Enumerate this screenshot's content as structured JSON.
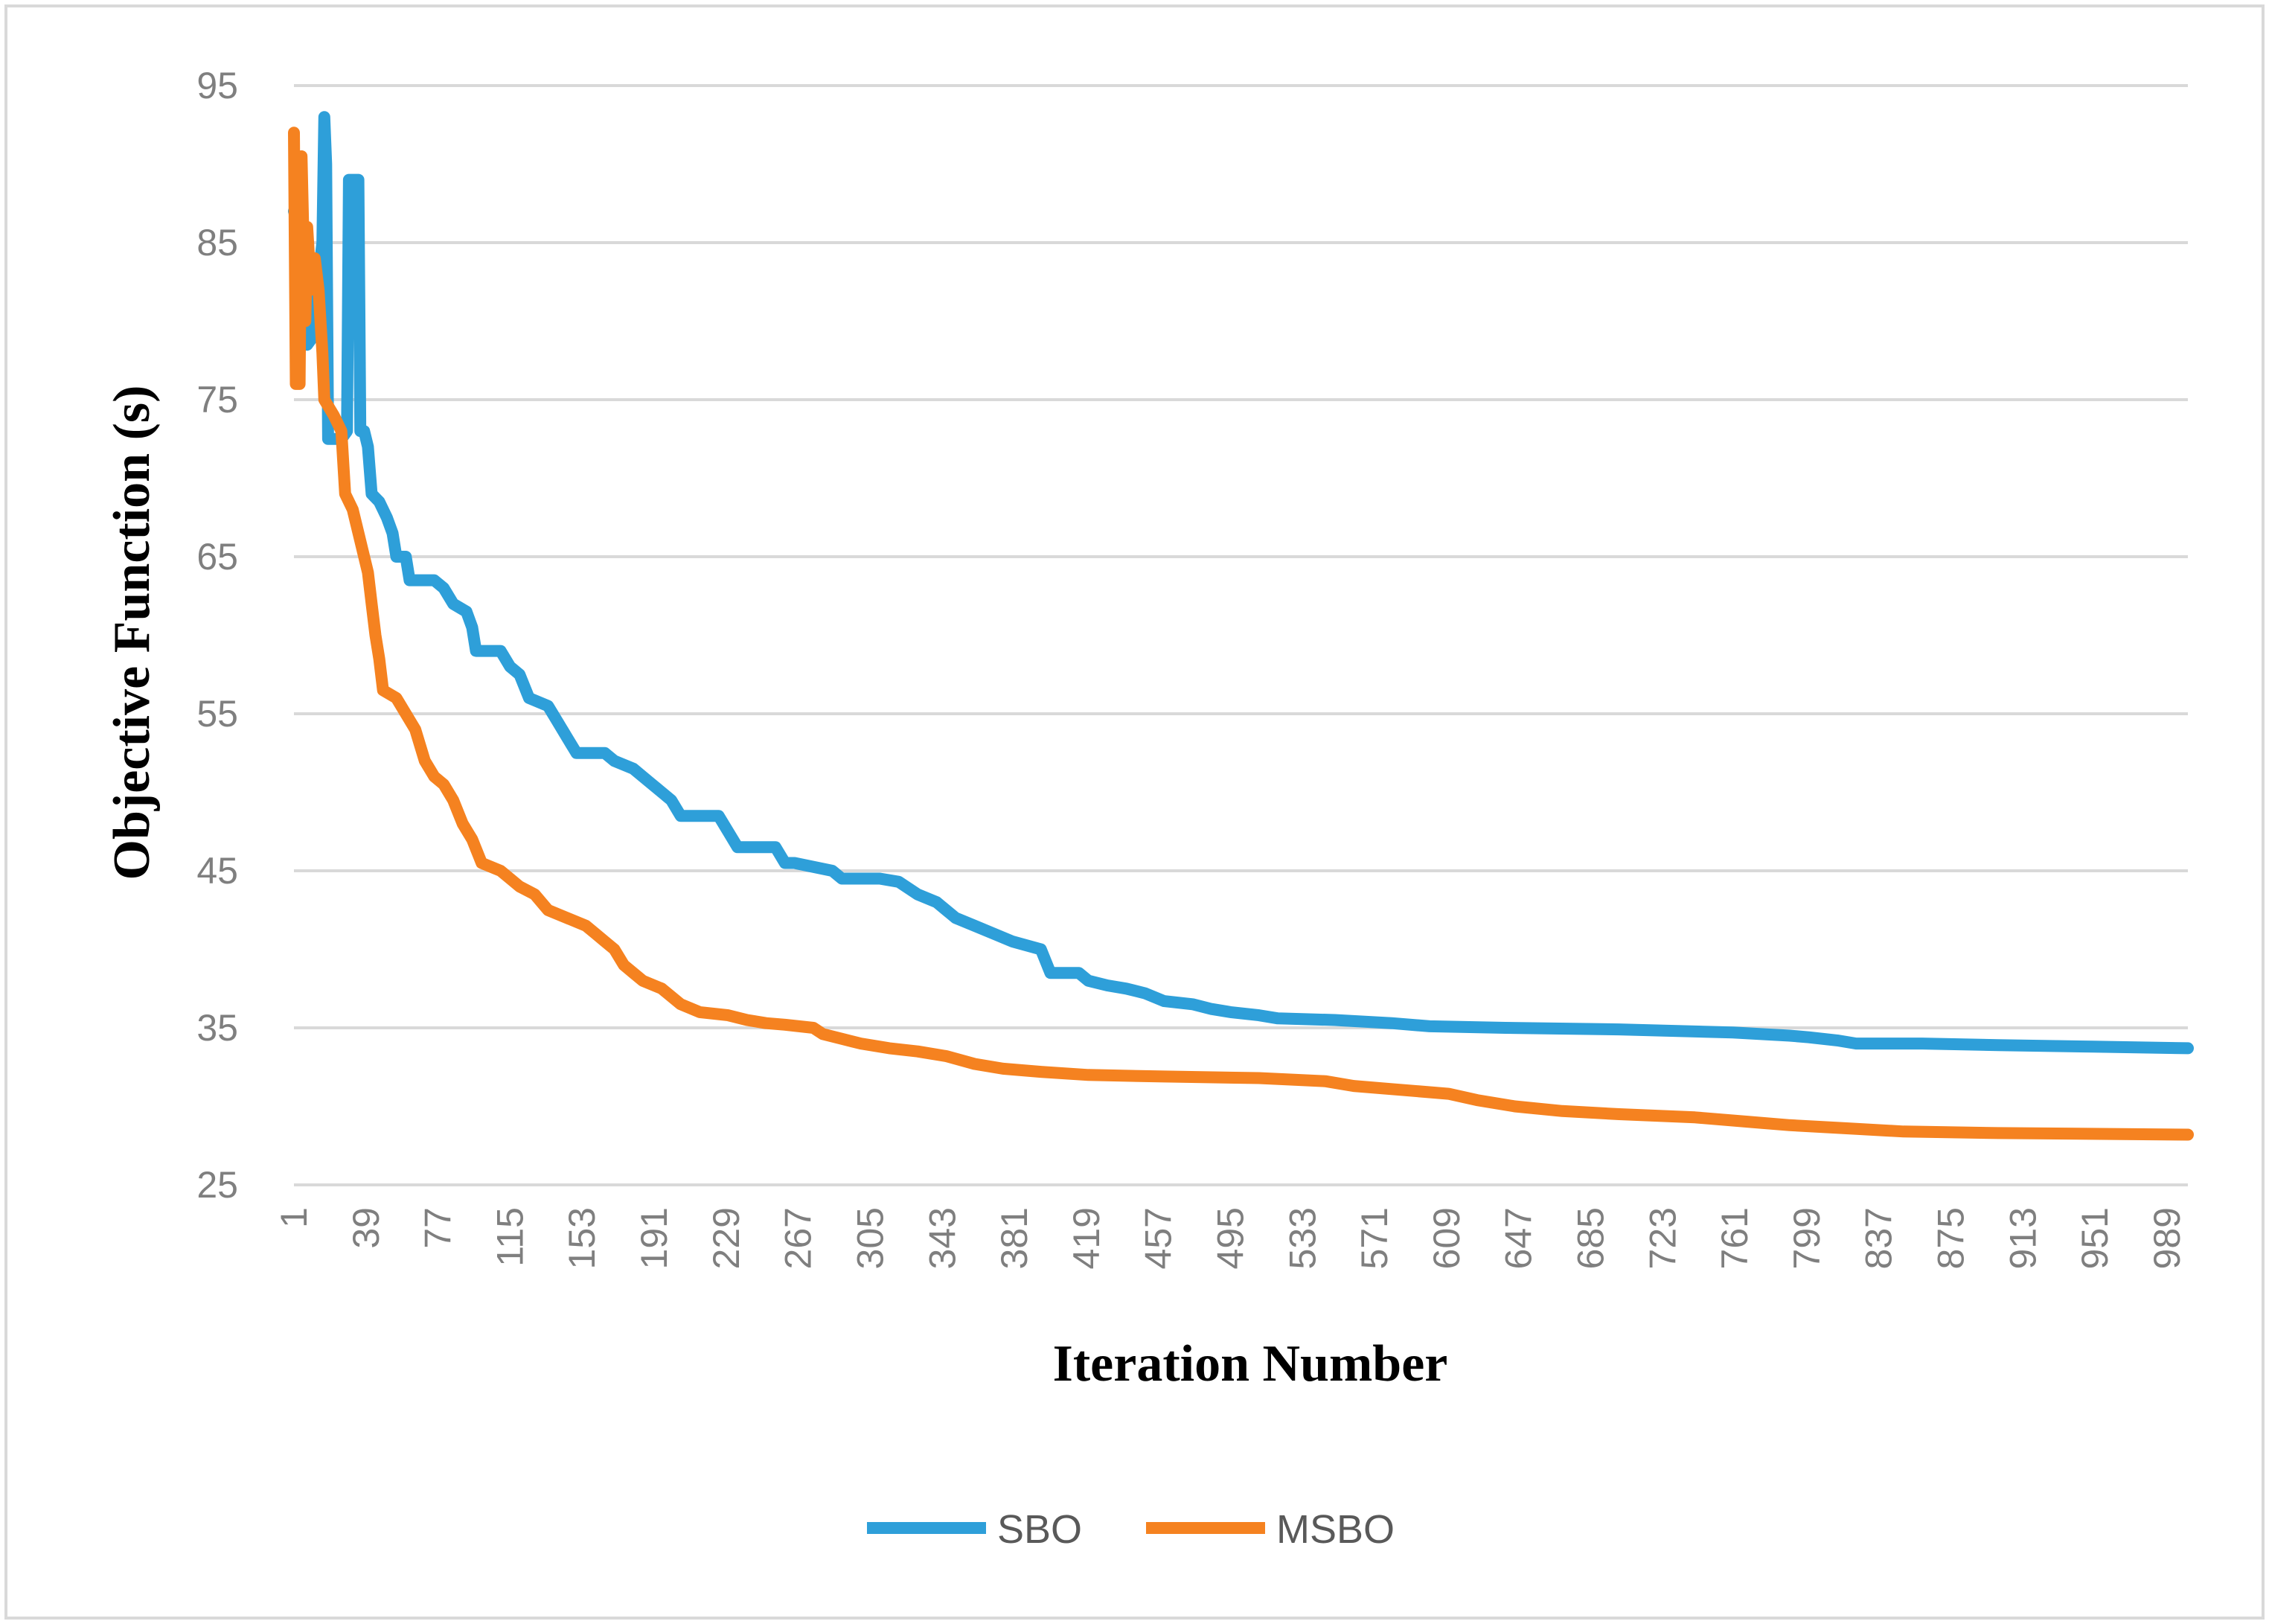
{
  "chart_data": {
    "type": "line",
    "title": "",
    "xlabel": "Iteration Number",
    "ylabel": "Objective Function (s)",
    "ylim": [
      25,
      95
    ],
    "xlim": [
      1,
      1000
    ],
    "yticks": [
      25,
      35,
      45,
      55,
      65,
      75,
      85,
      95
    ],
    "xticks": [
      1,
      39,
      77,
      115,
      153,
      191,
      229,
      267,
      305,
      343,
      381,
      419,
      457,
      495,
      533,
      571,
      609,
      647,
      685,
      723,
      761,
      799,
      837,
      875,
      913,
      951,
      989
    ],
    "grid": true,
    "legend_position": "bottom",
    "series": [
      {
        "name": "SBO",
        "color": "#2e9fd9",
        "points": [
          [
            1,
            87
          ],
          [
            4,
            86
          ],
          [
            6,
            80
          ],
          [
            8,
            78.5
          ],
          [
            11,
            79
          ],
          [
            13,
            82
          ],
          [
            15,
            84
          ],
          [
            16,
            85
          ],
          [
            17,
            93
          ],
          [
            18,
            90
          ],
          [
            19,
            72.5
          ],
          [
            22,
            72.5
          ],
          [
            26,
            72.5
          ],
          [
            29,
            73
          ],
          [
            30,
            89
          ],
          [
            35,
            89
          ],
          [
            36,
            73
          ],
          [
            38,
            73
          ],
          [
            40,
            72
          ],
          [
            42,
            69
          ],
          [
            46,
            68.5
          ],
          [
            50,
            67.5
          ],
          [
            53,
            66.5
          ],
          [
            55,
            65
          ],
          [
            60,
            65
          ],
          [
            62,
            63.5
          ],
          [
            70,
            63.5
          ],
          [
            75,
            63.5
          ],
          [
            80,
            63
          ],
          [
            85,
            62
          ],
          [
            92,
            61.5
          ],
          [
            95,
            60.5
          ],
          [
            97,
            59
          ],
          [
            110,
            59
          ],
          [
            115,
            58
          ],
          [
            120,
            57.5
          ],
          [
            125,
            56
          ],
          [
            135,
            55.5
          ],
          [
            140,
            54.5
          ],
          [
            145,
            53.5
          ],
          [
            150,
            52.5
          ],
          [
            165,
            52.5
          ],
          [
            170,
            52
          ],
          [
            180,
            51.5
          ],
          [
            185,
            51
          ],
          [
            190,
            50.5
          ],
          [
            195,
            50
          ],
          [
            200,
            49.5
          ],
          [
            205,
            48.5
          ],
          [
            225,
            48.5
          ],
          [
            230,
            47.5
          ],
          [
            235,
            46.5
          ],
          [
            255,
            46.5
          ],
          [
            260,
            45.5
          ],
          [
            265,
            45.5
          ],
          [
            285,
            45
          ],
          [
            290,
            44.5
          ],
          [
            310,
            44.5
          ],
          [
            320,
            44.3
          ],
          [
            330,
            43.5
          ],
          [
            340,
            43
          ],
          [
            345,
            42.5
          ],
          [
            350,
            42
          ],
          [
            360,
            41.5
          ],
          [
            370,
            41
          ],
          [
            380,
            40.5
          ],
          [
            395,
            40
          ],
          [
            400,
            38.5
          ],
          [
            415,
            38.5
          ],
          [
            420,
            38
          ],
          [
            430,
            37.7
          ],
          [
            440,
            37.5
          ],
          [
            450,
            37.2
          ],
          [
            460,
            36.7
          ],
          [
            475,
            36.5
          ],
          [
            485,
            36.2
          ],
          [
            495,
            36
          ],
          [
            510,
            35.8
          ],
          [
            520,
            35.6
          ],
          [
            550,
            35.5
          ],
          [
            580,
            35.3
          ],
          [
            600,
            35.1
          ],
          [
            640,
            35
          ],
          [
            700,
            34.9
          ],
          [
            760,
            34.7
          ],
          [
            790,
            34.5
          ],
          [
            800,
            34.4
          ],
          [
            815,
            34.2
          ],
          [
            825,
            34
          ],
          [
            860,
            34
          ],
          [
            900,
            33.9
          ],
          [
            950,
            33.8
          ],
          [
            1000,
            33.7
          ]
        ]
      },
      {
        "name": "MSBO",
        "color": "#f58220",
        "points": [
          [
            1,
            92
          ],
          [
            2,
            76
          ],
          [
            4,
            76
          ],
          [
            5,
            90.5
          ],
          [
            7,
            80
          ],
          [
            8,
            86
          ],
          [
            10,
            82
          ],
          [
            12,
            84
          ],
          [
            14,
            82
          ],
          [
            16,
            78
          ],
          [
            17,
            75
          ],
          [
            22,
            74
          ],
          [
            24,
            73.5
          ],
          [
            26,
            73
          ],
          [
            28,
            69
          ],
          [
            32,
            68
          ],
          [
            34,
            67
          ],
          [
            36,
            66
          ],
          [
            38,
            65
          ],
          [
            40,
            64
          ],
          [
            42,
            62
          ],
          [
            44,
            60
          ],
          [
            46,
            58.5
          ],
          [
            48,
            56.5
          ],
          [
            55,
            56
          ],
          [
            60,
            55
          ],
          [
            65,
            54
          ],
          [
            70,
            52
          ],
          [
            75,
            51
          ],
          [
            80,
            50.5
          ],
          [
            85,
            49.5
          ],
          [
            90,
            48
          ],
          [
            95,
            47
          ],
          [
            100,
            45.5
          ],
          [
            110,
            45
          ],
          [
            115,
            44.5
          ],
          [
            120,
            44
          ],
          [
            128,
            43.5
          ],
          [
            135,
            42.5
          ],
          [
            145,
            42
          ],
          [
            155,
            41.5
          ],
          [
            160,
            41
          ],
          [
            165,
            40.5
          ],
          [
            170,
            40
          ],
          [
            175,
            39
          ],
          [
            180,
            38.5
          ],
          [
            185,
            38
          ],
          [
            195,
            37.5
          ],
          [
            205,
            36.5
          ],
          [
            215,
            36
          ],
          [
            230,
            35.8
          ],
          [
            240,
            35.5
          ],
          [
            250,
            35.3
          ],
          [
            260,
            35.2
          ],
          [
            275,
            35
          ],
          [
            280,
            34.6
          ],
          [
            290,
            34.3
          ],
          [
            300,
            34
          ],
          [
            315,
            33.7
          ],
          [
            330,
            33.5
          ],
          [
            345,
            33.2
          ],
          [
            360,
            32.7
          ],
          [
            375,
            32.4
          ],
          [
            395,
            32.2
          ],
          [
            420,
            32
          ],
          [
            460,
            31.9
          ],
          [
            510,
            31.8
          ],
          [
            545,
            31.6
          ],
          [
            560,
            31.3
          ],
          [
            580,
            31.1
          ],
          [
            610,
            30.8
          ],
          [
            625,
            30.4
          ],
          [
            645,
            30
          ],
          [
            670,
            29.7
          ],
          [
            700,
            29.5
          ],
          [
            740,
            29.3
          ],
          [
            770,
            29
          ],
          [
            790,
            28.8
          ],
          [
            820,
            28.6
          ],
          [
            850,
            28.4
          ],
          [
            900,
            28.3
          ],
          [
            1000,
            28.2
          ]
        ]
      }
    ]
  }
}
